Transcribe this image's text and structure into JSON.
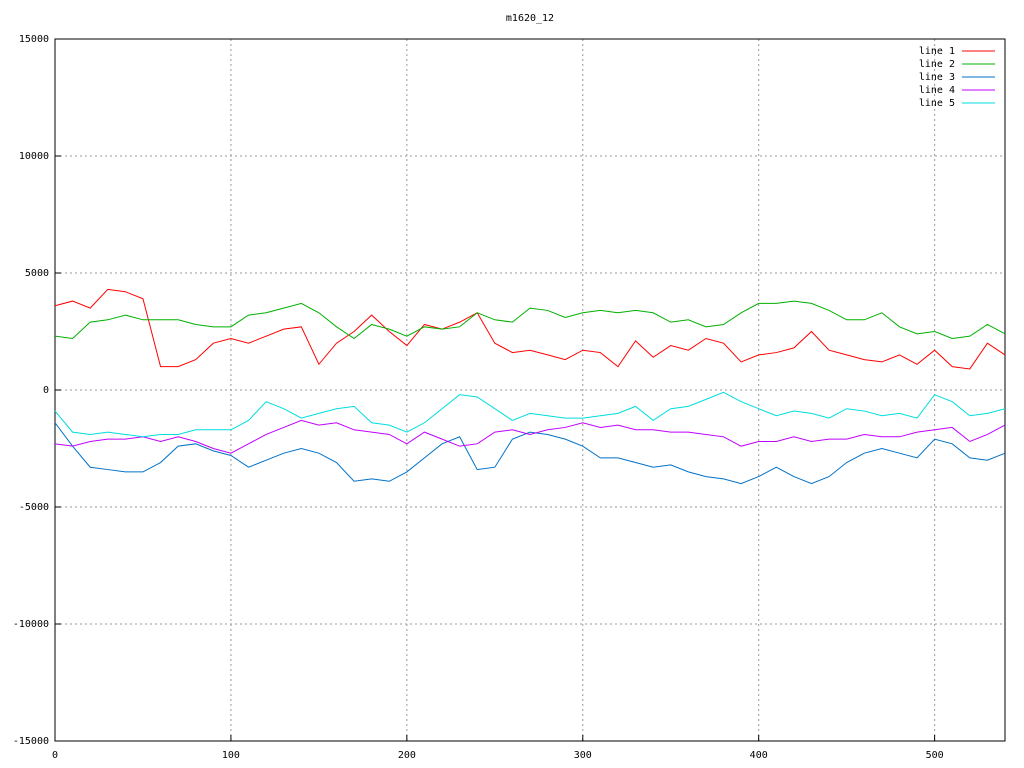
{
  "chart_data": {
    "type": "line",
    "title": "m1620_12",
    "x": [
      0,
      10,
      20,
      30,
      40,
      50,
      60,
      70,
      80,
      90,
      100,
      110,
      120,
      130,
      140,
      150,
      160,
      170,
      180,
      190,
      200,
      210,
      220,
      230,
      240,
      250,
      260,
      270,
      280,
      290,
      300,
      310,
      320,
      330,
      340,
      350,
      360,
      370,
      380,
      390,
      400,
      410,
      420,
      430,
      440,
      450,
      460,
      470,
      480,
      490,
      500,
      510,
      520,
      530,
      540
    ],
    "series": [
      {
        "name": "line 1",
        "color": "#ff0000",
        "values": [
          3600,
          3800,
          3500,
          4300,
          4200,
          3900,
          1000,
          1000,
          1300,
          2000,
          2200,
          2000,
          2300,
          2600,
          2700,
          1100,
          2000,
          2500,
          3200,
          2500,
          1900,
          2800,
          2600,
          2900,
          3300,
          2000,
          1600,
          1700,
          1500,
          1300,
          1700,
          1600,
          1000,
          2100,
          1400,
          1900,
          1700,
          2200,
          2000,
          1200,
          1500,
          1600,
          1800,
          2500,
          1700,
          1500,
          1300,
          1200,
          1500,
          1100,
          1700,
          1000,
          900,
          2000,
          1500
        ]
      },
      {
        "name": "line 2",
        "color": "#00b000",
        "values": [
          2300,
          2200,
          2900,
          3000,
          3200,
          3000,
          3000,
          3000,
          2800,
          2700,
          2700,
          3200,
          3300,
          3500,
          3700,
          3300,
          2700,
          2200,
          2800,
          2600,
          2300,
          2700,
          2600,
          2700,
          3300,
          3000,
          2900,
          3500,
          3400,
          3100,
          3300,
          3400,
          3300,
          3400,
          3300,
          2900,
          3000,
          2700,
          2800,
          3300,
          3700,
          3700,
          3800,
          3700,
          3400,
          3000,
          3000,
          3300,
          2700,
          2400,
          2500,
          2200,
          2300,
          2800,
          2400
        ]
      },
      {
        "name": "line 3",
        "color": "#0072c8",
        "values": [
          -1400,
          -2400,
          -3300,
          -3400,
          -3500,
          -3500,
          -3100,
          -2400,
          -2300,
          -2600,
          -2800,
          -3300,
          -3000,
          -2700,
          -2500,
          -2700,
          -3100,
          -3900,
          -3800,
          -3900,
          -3500,
          -2900,
          -2300,
          -2000,
          -3400,
          -3300,
          -2100,
          -1800,
          -1900,
          -2100,
          -2400,
          -2900,
          -2900,
          -3100,
          -3300,
          -3200,
          -3500,
          -3700,
          -3800,
          -4000,
          -3700,
          -3300,
          -3700,
          -4000,
          -3700,
          -3100,
          -2700,
          -2500,
          -2700,
          -2900,
          -2100,
          -2300,
          -2900,
          -3000,
          -2700
        ]
      },
      {
        "name": "line 4",
        "color": "#c000ff",
        "values": [
          -2300,
          -2400,
          -2200,
          -2100,
          -2100,
          -2000,
          -2200,
          -2000,
          -2200,
          -2500,
          -2700,
          -2300,
          -1900,
          -1600,
          -1300,
          -1500,
          -1400,
          -1700,
          -1800,
          -1900,
          -2300,
          -1800,
          -2100,
          -2400,
          -2300,
          -1800,
          -1700,
          -1900,
          -1700,
          -1600,
          -1400,
          -1600,
          -1500,
          -1700,
          -1700,
          -1800,
          -1800,
          -1900,
          -2000,
          -2400,
          -2200,
          -2200,
          -2000,
          -2200,
          -2100,
          -2100,
          -1900,
          -2000,
          -2000,
          -1800,
          -1700,
          -1600,
          -2200,
          -1900,
          -1500
        ]
      },
      {
        "name": "line 5",
        "color": "#00dddd",
        "values": [
          -900,
          -1800,
          -1900,
          -1800,
          -1900,
          -2000,
          -1900,
          -1900,
          -1700,
          -1700,
          -1700,
          -1300,
          -500,
          -800,
          -1200,
          -1000,
          -800,
          -700,
          -1400,
          -1500,
          -1800,
          -1400,
          -800,
          -200,
          -300,
          -800,
          -1300,
          -1000,
          -1100,
          -1200,
          -1200,
          -1100,
          -1000,
          -700,
          -1300,
          -800,
          -700,
          -400,
          -100,
          -500,
          -800,
          -1100,
          -900,
          -1000,
          -1200,
          -800,
          -900,
          -1100,
          -1000,
          -1200,
          -200,
          -500,
          -1100,
          -1000,
          -800
        ]
      }
    ],
    "xlim": [
      0,
      540
    ],
    "xticks": [
      0,
      100,
      200,
      300,
      400,
      500
    ],
    "ylim": [
      -15000,
      15000
    ],
    "yticks": [
      -15000,
      -10000,
      -5000,
      0,
      5000,
      10000,
      15000
    ],
    "grid": true,
    "legend": "top-right"
  }
}
